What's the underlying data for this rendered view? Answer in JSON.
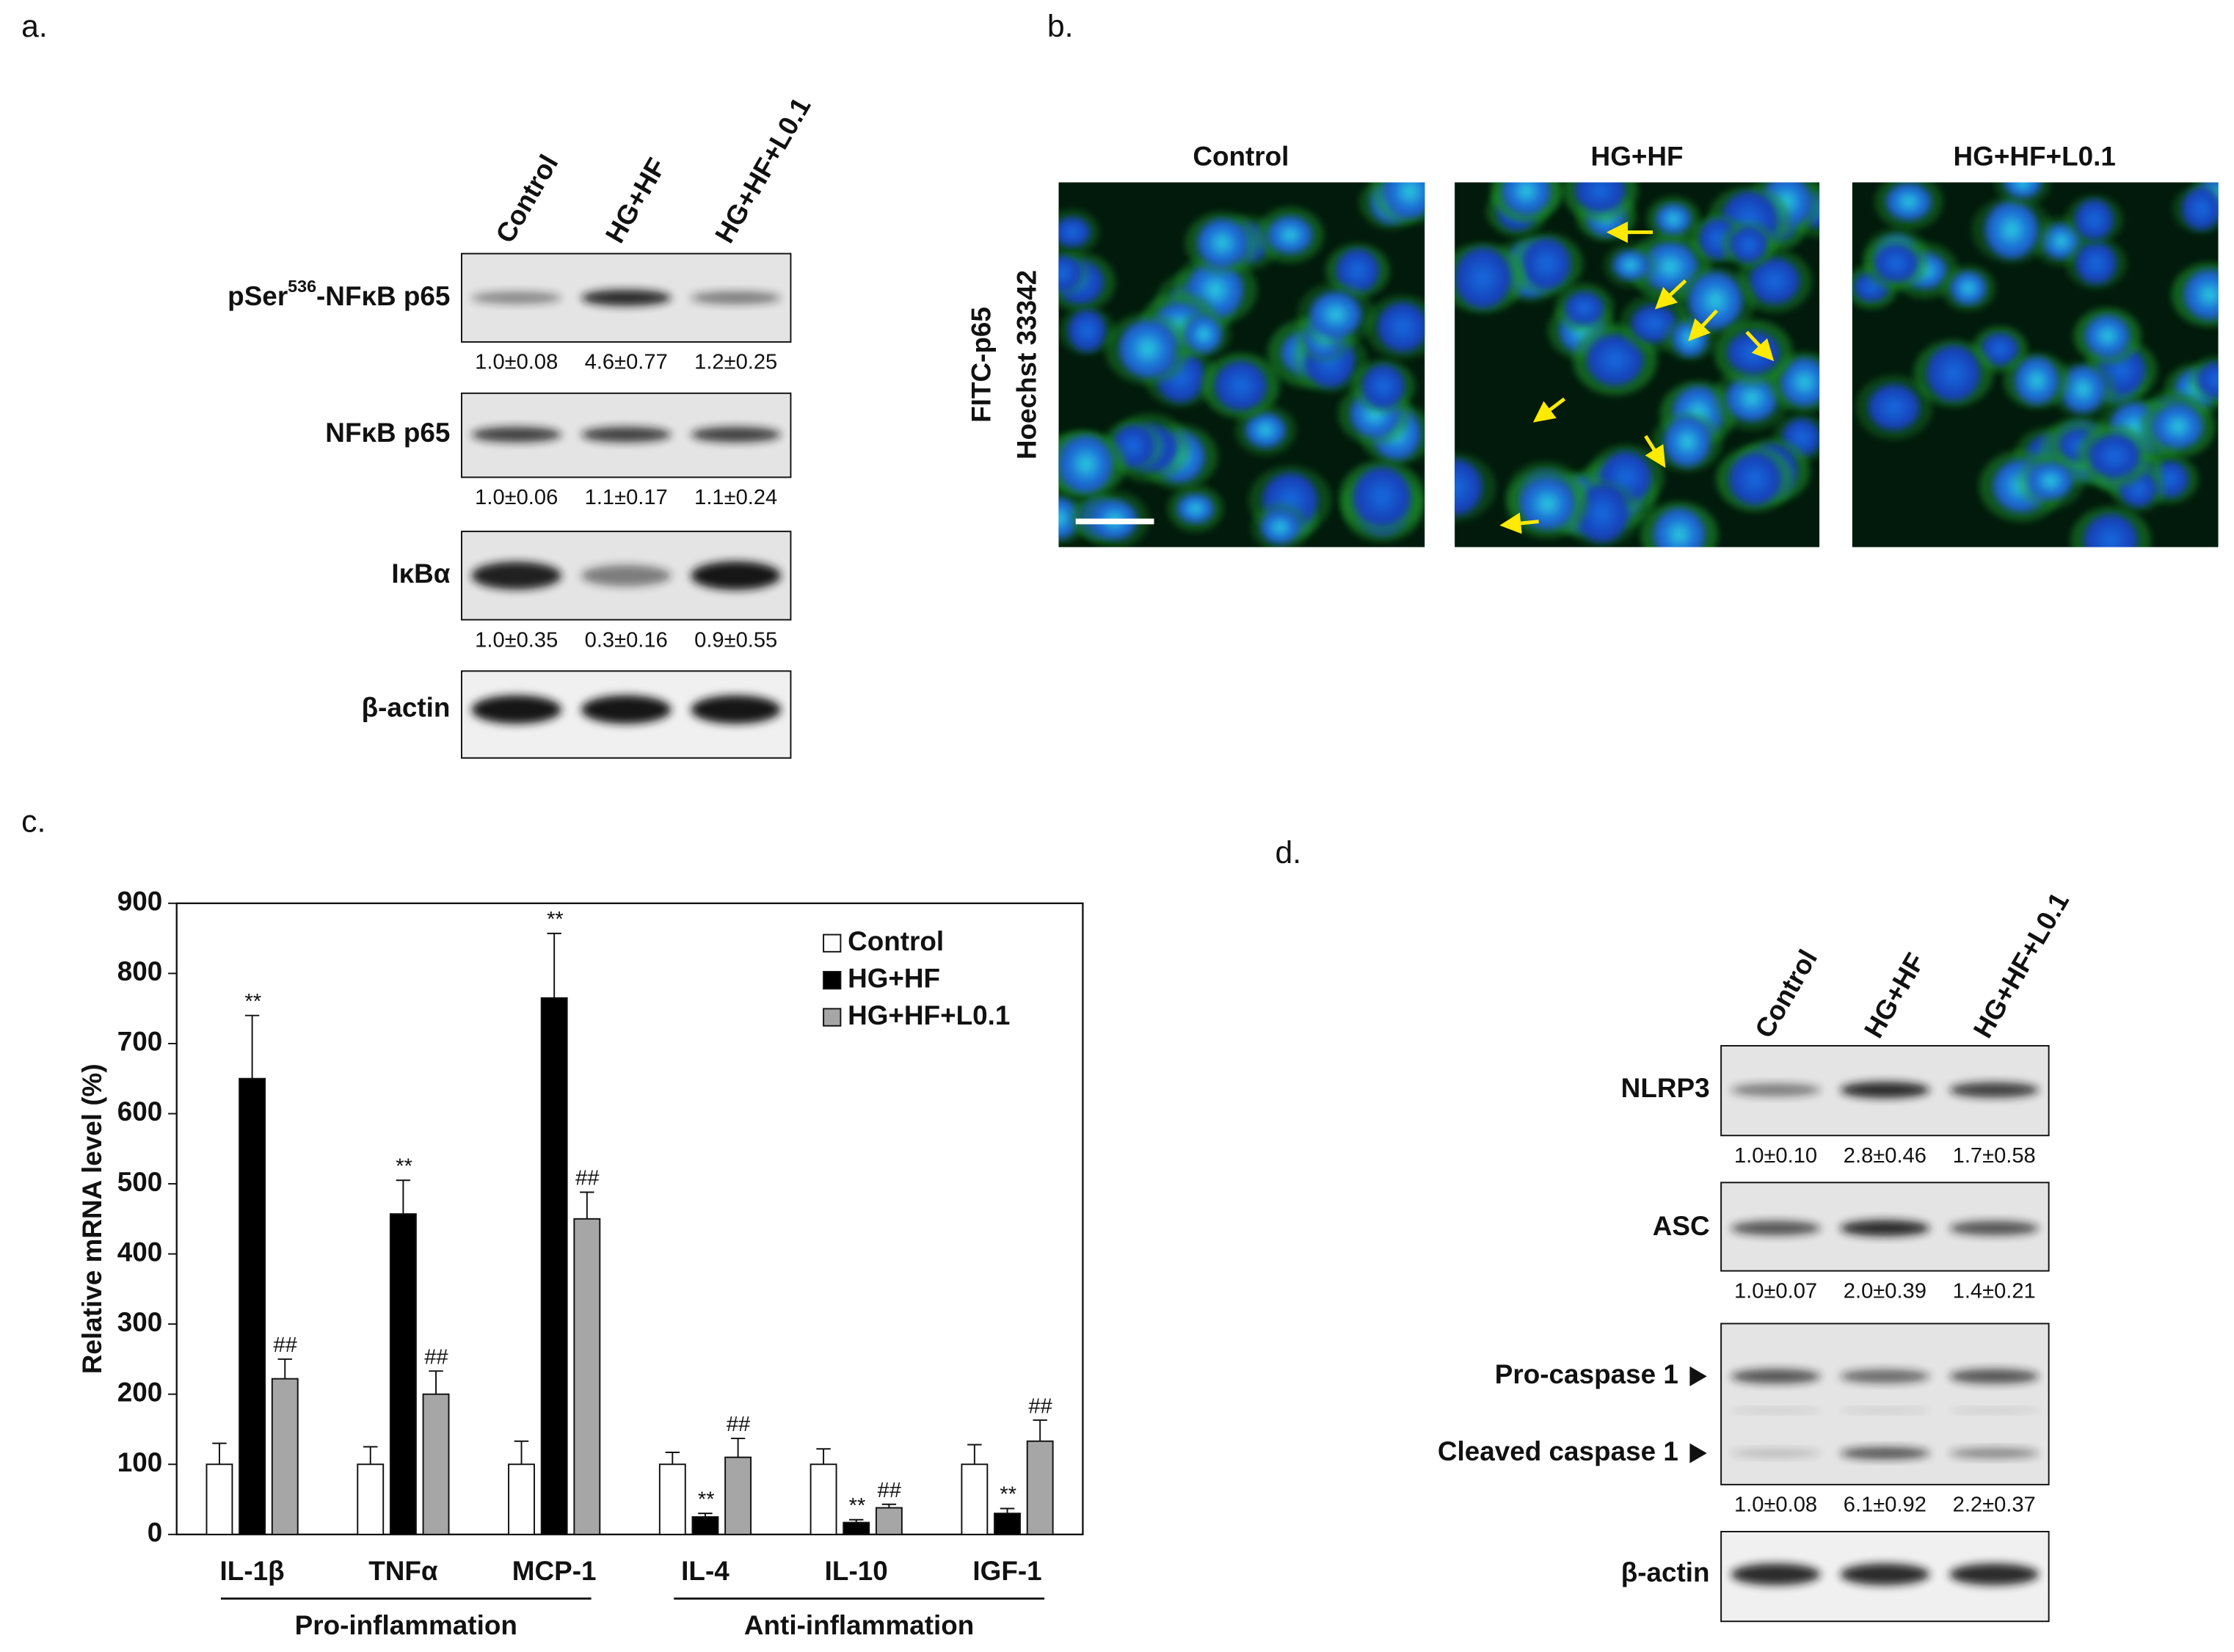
{
  "panel_a": {
    "label": "a.",
    "lanes": [
      "Control",
      "HG+HF",
      "HG+HF+L0.1"
    ],
    "blots": [
      {
        "label": {
          "text": "pSer",
          "sup": "536",
          "rest": "-NFκB p65"
        },
        "quant": [
          "1.0±0.08",
          "4.6±0.77",
          "1.2±0.25"
        ]
      },
      {
        "label": "NFκB p65",
        "quant": [
          "1.0±0.06",
          "1.1±0.17",
          "1.1±0.24"
        ]
      },
      {
        "label": "IκBα",
        "quant": [
          "1.0±0.35",
          "0.3±0.16",
          "0.9±0.55"
        ]
      },
      {
        "label": "β-actin"
      }
    ]
  },
  "panel_b": {
    "label": "b.",
    "titles": [
      "Control",
      "HG+HF",
      "HG+HF+L0.1"
    ],
    "stain_labels": [
      "FITC-p65",
      "Hoechst 33342"
    ]
  },
  "chart_data": {
    "type": "bar",
    "panel_label": "c.",
    "ylabel": "Relative mRNA level (%)",
    "categories": [
      "IL-1β",
      "TNFα",
      "MCP-1",
      "IL-4",
      "IL-10",
      "IGF-1"
    ],
    "series": [
      {
        "name": "Control",
        "color": "#ffffff",
        "values": [
          100,
          100,
          100,
          100,
          100,
          100
        ],
        "errors": [
          30,
          25,
          33,
          17,
          22,
          28
        ]
      },
      {
        "name": "HG+HF",
        "color": "#000000",
        "values": [
          650,
          457,
          765,
          25,
          17,
          30
        ],
        "errors": [
          90,
          48,
          92,
          5,
          4,
          7
        ],
        "annotations": [
          "**",
          "**",
          "**",
          "**",
          "**",
          "**"
        ]
      },
      {
        "name": "HG+HF+L0.1",
        "color": "#a6a6a6",
        "values": [
          222,
          200,
          450,
          110,
          38,
          133
        ],
        "errors": [
          28,
          33,
          38,
          27,
          5,
          30
        ],
        "annotations": [
          "##",
          "##",
          "##",
          "##",
          "##",
          "##"
        ]
      }
    ],
    "groups": [
      {
        "name": "Pro-inflammation",
        "categories": [
          "IL-1β",
          "TNFα",
          "MCP-1"
        ]
      },
      {
        "name": "Anti-inflammation",
        "categories": [
          "IL-4",
          "IL-10",
          "IGF-1"
        ]
      }
    ],
    "ylim": [
      0,
      900
    ],
    "yticks": [
      0,
      100,
      200,
      300,
      400,
      500,
      600,
      700,
      800,
      900
    ],
    "legend": "upper right"
  },
  "panel_d": {
    "label": "d.",
    "lanes": [
      "Control",
      "HG+HF",
      "HG+HF+L0.1"
    ],
    "blots": [
      {
        "label": "NLRP3",
        "quant": [
          "1.0±0.10",
          "2.8±0.46",
          "1.7±0.58"
        ]
      },
      {
        "label": "ASC",
        "quant": [
          "1.0±0.07",
          "2.0±0.39",
          "1.4±0.21"
        ]
      },
      {
        "labels": [
          "Pro-caspase 1",
          "Cleaved caspase 1"
        ],
        "quant": [
          "1.0±0.08",
          "6.1±0.92",
          "2.2±0.37"
        ]
      },
      {
        "label": "β-actin"
      }
    ]
  }
}
